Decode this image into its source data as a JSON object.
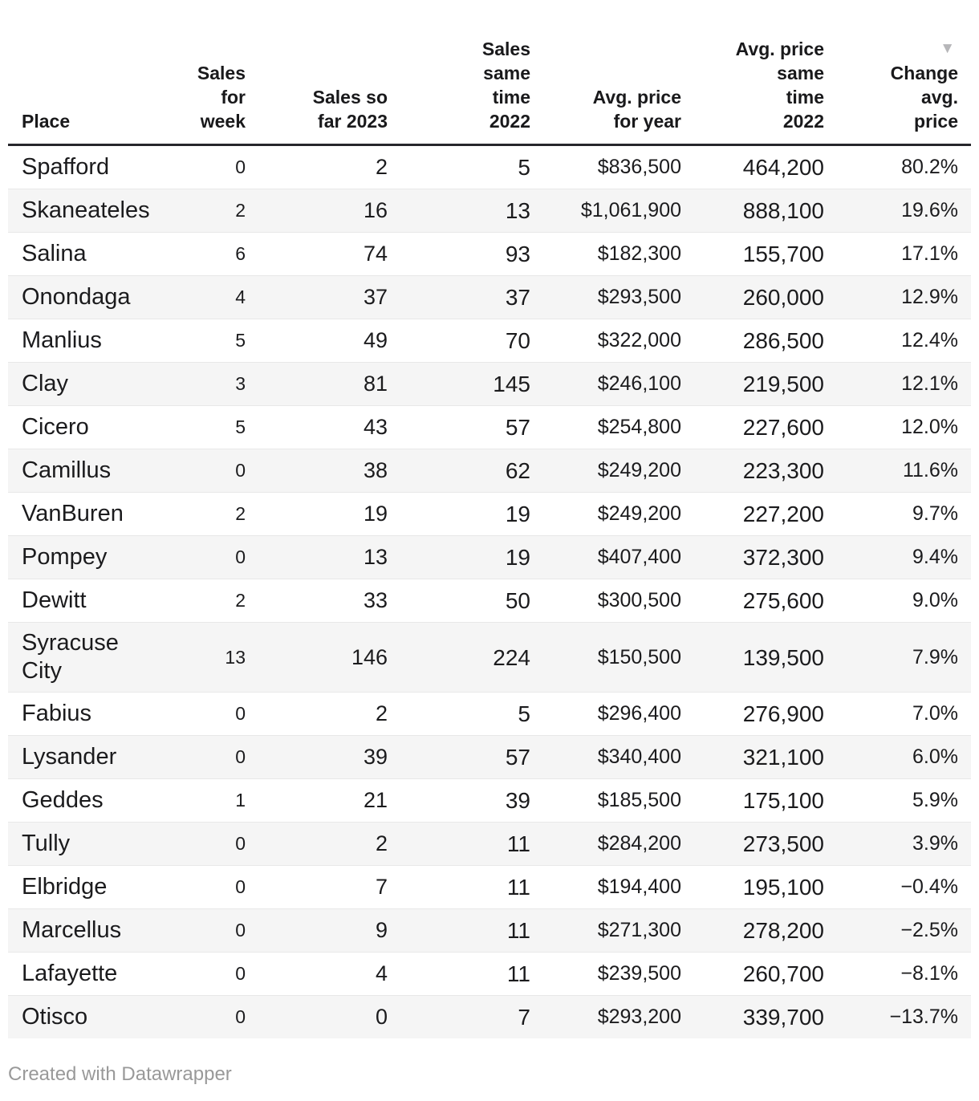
{
  "chart_data": {
    "type": "table",
    "columns": [
      {
        "key": "place",
        "lines": [
          "Place"
        ]
      },
      {
        "key": "sales-for-week",
        "lines": [
          "Sales",
          "for",
          "week"
        ]
      },
      {
        "key": "sales-so-far-2023",
        "lines": [
          "Sales so",
          "far 2023"
        ]
      },
      {
        "key": "sales-same-time-2022",
        "lines": [
          "Sales",
          "same",
          "time",
          "2022"
        ]
      },
      {
        "key": "avg-price-for-year",
        "lines": [
          "Avg. price",
          "for year"
        ]
      },
      {
        "key": "avg-price-same-time-2022",
        "lines": [
          "Avg. price",
          "same",
          "time",
          "2022"
        ]
      },
      {
        "key": "change-avg-price",
        "lines": [
          "Change",
          "avg.",
          "price"
        ]
      }
    ],
    "sort": {
      "column": "change-avg-price",
      "direction": "descending",
      "icon": "▼"
    },
    "rows": [
      [
        "Spafford",
        "0",
        "2",
        "5",
        "$836,500",
        "464,200",
        "80.2%"
      ],
      [
        "Skaneateles",
        "2",
        "16",
        "13",
        "$1,061,900",
        "888,100",
        "19.6%"
      ],
      [
        "Salina",
        "6",
        "74",
        "93",
        "$182,300",
        "155,700",
        "17.1%"
      ],
      [
        "Onondaga",
        "4",
        "37",
        "37",
        "$293,500",
        "260,000",
        "12.9%"
      ],
      [
        "Manlius",
        "5",
        "49",
        "70",
        "$322,000",
        "286,500",
        "12.4%"
      ],
      [
        "Clay",
        "3",
        "81",
        "145",
        "$246,100",
        "219,500",
        "12.1%"
      ],
      [
        "Cicero",
        "5",
        "43",
        "57",
        "$254,800",
        "227,600",
        "12.0%"
      ],
      [
        "Camillus",
        "0",
        "38",
        "62",
        "$249,200",
        "223,300",
        "11.6%"
      ],
      [
        "VanBuren",
        "2",
        "19",
        "19",
        "$249,200",
        "227,200",
        "9.7%"
      ],
      [
        "Pompey",
        "0",
        "13",
        "19",
        "$407,400",
        "372,300",
        "9.4%"
      ],
      [
        "Dewitt",
        "2",
        "33",
        "50",
        "$300,500",
        "275,600",
        "9.0%"
      ],
      [
        "Syracuse City",
        "13",
        "146",
        "224",
        "$150,500",
        "139,500",
        "7.9%"
      ],
      [
        "Fabius",
        "0",
        "2",
        "5",
        "$296,400",
        "276,900",
        "7.0%"
      ],
      [
        "Lysander",
        "0",
        "39",
        "57",
        "$340,400",
        "321,100",
        "6.0%"
      ],
      [
        "Geddes",
        "1",
        "21",
        "39",
        "$185,500",
        "175,100",
        "5.9%"
      ],
      [
        "Tully",
        "0",
        "2",
        "11",
        "$284,200",
        "273,500",
        "3.9%"
      ],
      [
        "Elbridge",
        "0",
        "7",
        "11",
        "$194,400",
        "195,100",
        "−0.4%"
      ],
      [
        "Marcellus",
        "0",
        "9",
        "11",
        "$271,300",
        "278,200",
        "−2.5%"
      ],
      [
        "Lafayette",
        "0",
        "4",
        "11",
        "$239,500",
        "260,700",
        "−8.1%"
      ],
      [
        "Otisco",
        "0",
        "0",
        "7",
        "$293,200",
        "339,700",
        "−13.7%"
      ]
    ]
  },
  "footer": {
    "credit": "Created with Datawrapper"
  },
  "colors": {
    "text": "#1b1b1d",
    "stripe": "#f5f5f5",
    "row_divider": "#e8e8e8",
    "header_rule": "#26262b",
    "sort_arrow": "#b6b6b9",
    "credit_text": "#999999"
  }
}
